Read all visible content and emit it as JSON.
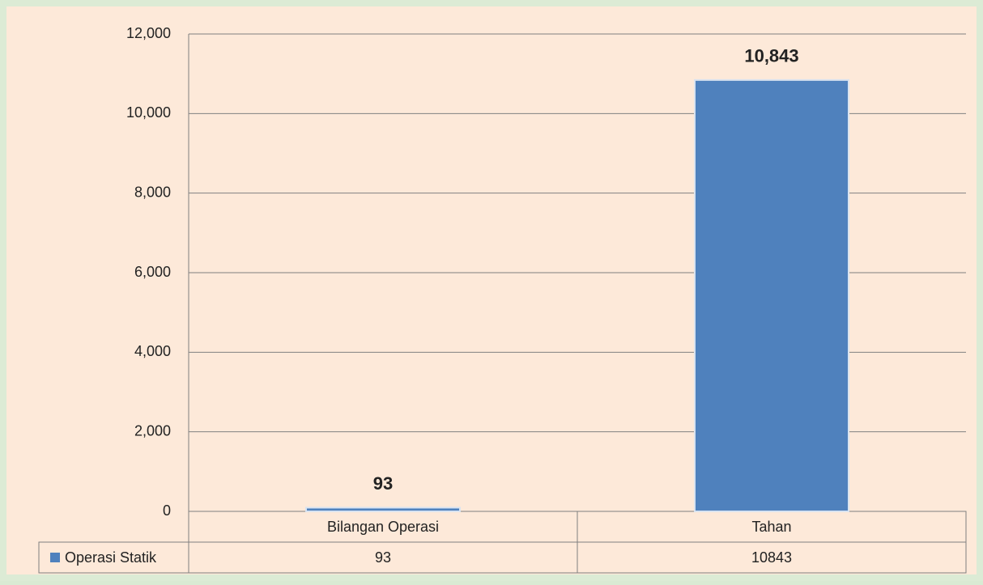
{
  "chart_data": {
    "type": "bar",
    "categories": [
      "Bilangan Operasi",
      "Tahan"
    ],
    "series": [
      {
        "name": "Operasi Statik",
        "color": "#4f81bd",
        "values": [
          93,
          10843
        ],
        "value_labels": [
          "93",
          "10,843"
        ]
      }
    ],
    "ylim": [
      0,
      12000
    ],
    "yticks": [
      0,
      {
        "value": 2000,
        "label": "2,000"
      },
      {
        "value": 4000,
        "label": "4,000"
      },
      {
        "value": 6000,
        "label": "6,000"
      },
      {
        "value": 8000,
        "label": "8,000"
      },
      {
        "value": 10000,
        "label": "10,000"
      },
      {
        "value": 12000,
        "label": "12,000"
      }
    ],
    "grid": true
  }
}
